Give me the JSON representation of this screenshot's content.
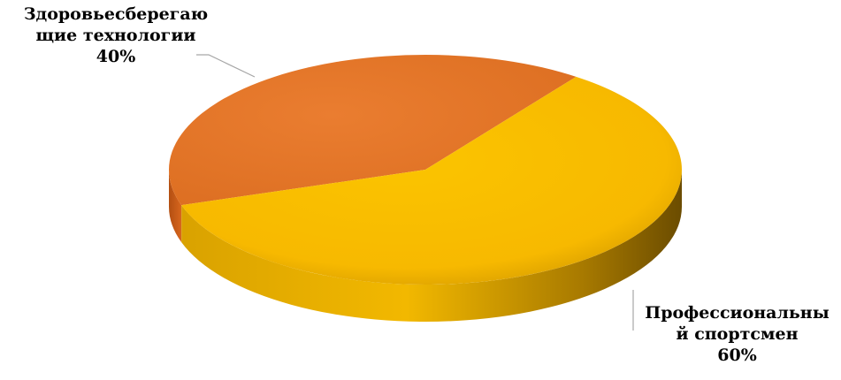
{
  "chart_data": {
    "type": "pie",
    "style": "3d",
    "slices": [
      {
        "name_lines": [
          "Здоровьесберегаю",
          "щие технологии"
        ],
        "percent_label": "40%",
        "value": 40,
        "color": "#E87A2E"
      },
      {
        "name_lines": [
          "Профессиональны",
          "й спортсмен"
        ],
        "percent_label": "60%",
        "value": 60,
        "color": "#F9BC00"
      }
    ],
    "legend": "none"
  }
}
